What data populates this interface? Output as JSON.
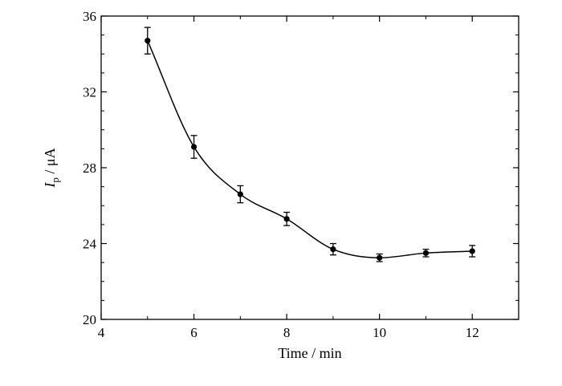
{
  "chart_data": {
    "type": "line",
    "xlabel": "Time / min",
    "ylabel": {
      "main": "I",
      "subscript": "p",
      "unit": " / μA"
    },
    "xlim": [
      4,
      13
    ],
    "ylim": [
      20,
      36
    ],
    "x_ticks": [
      4,
      6,
      8,
      10,
      12
    ],
    "y_ticks": [
      20,
      24,
      28,
      32,
      36
    ],
    "minor_ticks": true,
    "grid": false,
    "legend": "none",
    "series": [
      {
        "x": [
          5,
          6,
          7,
          8,
          9,
          10,
          11,
          12
        ],
        "y": [
          34.7,
          29.1,
          26.6,
          25.3,
          23.7,
          23.25,
          23.5,
          23.6
        ],
        "error": [
          0.7,
          0.6,
          0.45,
          0.35,
          0.3,
          0.2,
          0.2,
          0.3
        ],
        "color": "#000000",
        "marker": "circle",
        "smooth": true
      }
    ]
  }
}
